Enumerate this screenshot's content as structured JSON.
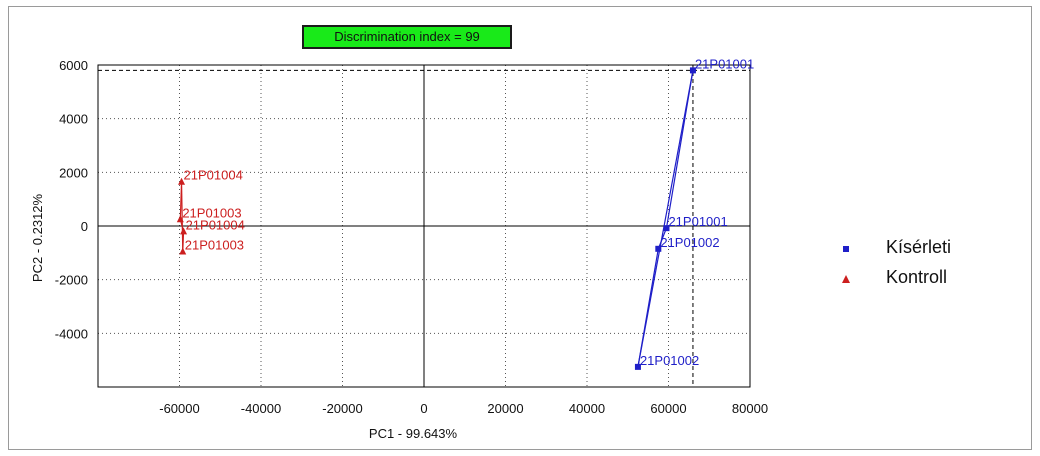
{
  "badge": {
    "text": "Discrimination index = 99",
    "color": "#19ea19"
  },
  "chart_data": {
    "type": "scatter",
    "title": "",
    "xlabel": "PC1 - 99.643%",
    "ylabel": "PC2 - 0.2312%",
    "xlim": [
      -80000,
      80000
    ],
    "ylim": [
      -6000,
      6000
    ],
    "x_ticks": [
      -60000,
      -40000,
      -20000,
      0,
      20000,
      40000,
      60000,
      80000
    ],
    "y_ticks": [
      -4000,
      -2000,
      0,
      2000,
      4000,
      6000
    ],
    "grid": true,
    "legend_position": "right",
    "series": [
      {
        "name": "Kísérleti",
        "color": "#1f1fc8",
        "marker": "square",
        "connected": true,
        "points": [
          {
            "x": 66000,
            "y": 5800,
            "label": "21P01001"
          },
          {
            "x": 59500,
            "y": -80,
            "label": "21P01001"
          },
          {
            "x": 57500,
            "y": -850,
            "label": "21P01002"
          },
          {
            "x": 52500,
            "y": -5250,
            "label": "21P01002"
          }
        ]
      },
      {
        "name": "Kontroll",
        "color": "#cc1f1f",
        "marker": "triangle",
        "connected": true,
        "points": [
          {
            "x": -59500,
            "y": 1650,
            "label": "21P01004"
          },
          {
            "x": -59800,
            "y": 250,
            "label": "21P01003"
          },
          {
            "x": -59000,
            "y": -200,
            "label": "21P01004"
          },
          {
            "x": -59200,
            "y": -950,
            "label": "21P01003"
          }
        ]
      }
    ],
    "reference_lines": {
      "x": 66000,
      "y": 5800
    }
  }
}
